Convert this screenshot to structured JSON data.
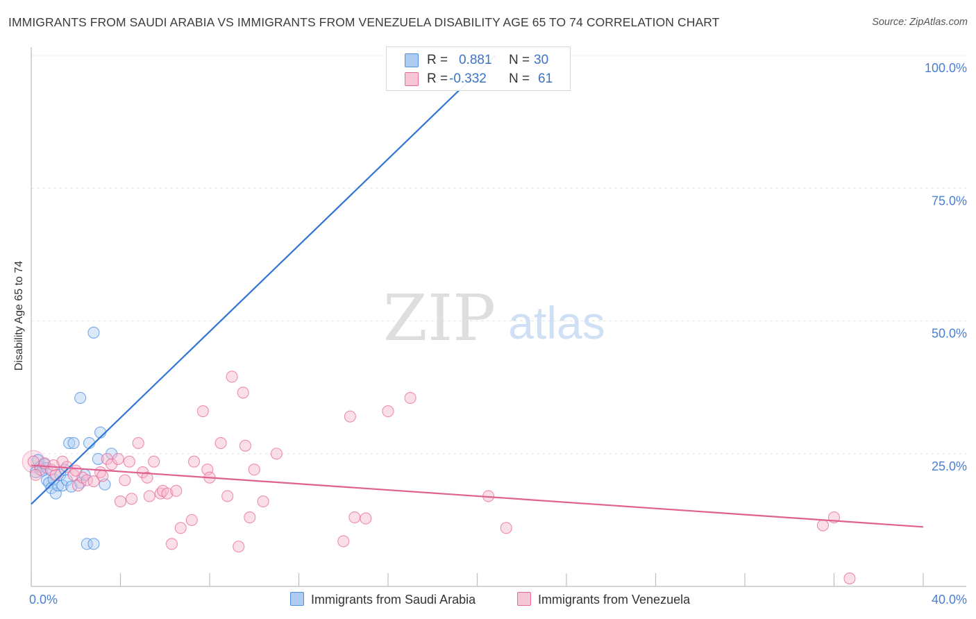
{
  "title": "IMMIGRANTS FROM SAUDI ARABIA VS IMMIGRANTS FROM VENEZUELA DISABILITY AGE 65 TO 74 CORRELATION CHART",
  "source": "Source: ZipAtlas.com",
  "watermark": {
    "zip": "ZIP",
    "atlas": "atlas"
  },
  "stats": [
    {
      "r_label": "R =",
      "r_value": "0.881",
      "n_label": "N =",
      "n_value": "30",
      "color": "#4a90e2"
    },
    {
      "r_label": "R =",
      "r_value": "-0.332",
      "n_label": "N =",
      "n_value": "61",
      "color": "#e86a9a"
    }
  ],
  "chart_data": {
    "type": "scatter",
    "title": "IMMIGRANTS FROM SAUDI ARABIA VS IMMIGRANTS FROM VENEZUELA DISABILITY AGE 65 TO 74 CORRELATION CHART",
    "xlabel": "",
    "ylabel": "Disability Age 65 to 74",
    "xlim": [
      0,
      40
    ],
    "ylim": [
      0,
      100
    ],
    "x_tick_labels": [
      "0.0%",
      "40.0%"
    ],
    "y_ticks": [
      25,
      50,
      75,
      100
    ],
    "y_tick_labels": [
      "25.0%",
      "50.0%",
      "75.0%",
      "100.0%"
    ],
    "grid": true,
    "series": [
      {
        "name": "Immigrants from Saudi Arabia",
        "color": "#4a90e2",
        "fill": "#aecbf2",
        "trend": {
          "x": [
            0,
            20.8
          ],
          "y": [
            15.5,
            100
          ]
        },
        "points": [
          {
            "x": 0.2,
            "y": 21.5
          },
          {
            "x": 0.3,
            "y": 23.8
          },
          {
            "x": 0.4,
            "y": 22.5
          },
          {
            "x": 0.5,
            "y": 21.8
          },
          {
            "x": 0.6,
            "y": 23.0
          },
          {
            "x": 0.7,
            "y": 22.3
          },
          {
            "x": 0.7,
            "y": 20.0
          },
          {
            "x": 0.8,
            "y": 19.5
          },
          {
            "x": 0.9,
            "y": 18.5
          },
          {
            "x": 1.0,
            "y": 20.2
          },
          {
            "x": 1.1,
            "y": 17.5
          },
          {
            "x": 1.2,
            "y": 19.0
          },
          {
            "x": 1.3,
            "y": 21.0
          },
          {
            "x": 1.4,
            "y": 19.0
          },
          {
            "x": 1.5,
            "y": 22.0
          },
          {
            "x": 1.6,
            "y": 20.0
          },
          {
            "x": 1.7,
            "y": 27.0
          },
          {
            "x": 1.8,
            "y": 18.8
          },
          {
            "x": 1.9,
            "y": 27.0
          },
          {
            "x": 2.2,
            "y": 19.5
          },
          {
            "x": 2.2,
            "y": 35.5
          },
          {
            "x": 2.4,
            "y": 21.0
          },
          {
            "x": 2.5,
            "y": 8.0
          },
          {
            "x": 2.6,
            "y": 27.0
          },
          {
            "x": 2.8,
            "y": 8.0
          },
          {
            "x": 2.8,
            "y": 47.8
          },
          {
            "x": 3.0,
            "y": 24.0
          },
          {
            "x": 3.1,
            "y": 29.0
          },
          {
            "x": 3.3,
            "y": 19.2
          },
          {
            "x": 3.6,
            "y": 25.0
          }
        ]
      },
      {
        "name": "Immigrants from Venezuela",
        "color": "#e86a9a",
        "fill": "#f7b9cd",
        "trend": {
          "x": [
            0,
            40
          ],
          "y": [
            22.8,
            11.2
          ]
        },
        "points": [
          {
            "x": 0.1,
            "y": 23.5
          },
          {
            "x": 0.4,
            "y": 22.0
          },
          {
            "x": 0.6,
            "y": 23.2
          },
          {
            "x": 0.9,
            "y": 22.0
          },
          {
            "x": 1.1,
            "y": 21.0
          },
          {
            "x": 1.4,
            "y": 23.5
          },
          {
            "x": 1.6,
            "y": 22.5
          },
          {
            "x": 1.9,
            "y": 21.0
          },
          {
            "x": 2.1,
            "y": 19.0
          },
          {
            "x": 2.3,
            "y": 20.5
          },
          {
            "x": 2.5,
            "y": 20.0
          },
          {
            "x": 2.8,
            "y": 19.8
          },
          {
            "x": 3.1,
            "y": 21.5
          },
          {
            "x": 3.4,
            "y": 24.0
          },
          {
            "x": 3.6,
            "y": 23.0
          },
          {
            "x": 3.9,
            "y": 24.0
          },
          {
            "x": 4.0,
            "y": 16.0
          },
          {
            "x": 4.2,
            "y": 20.0
          },
          {
            "x": 4.4,
            "y": 23.5
          },
          {
            "x": 4.5,
            "y": 16.5
          },
          {
            "x": 4.8,
            "y": 27.0
          },
          {
            "x": 5.0,
            "y": 21.5
          },
          {
            "x": 5.2,
            "y": 20.5
          },
          {
            "x": 5.3,
            "y": 17.0
          },
          {
            "x": 5.5,
            "y": 23.5
          },
          {
            "x": 5.8,
            "y": 17.5
          },
          {
            "x": 5.9,
            "y": 18.0
          },
          {
            "x": 6.1,
            "y": 17.5
          },
          {
            "x": 6.3,
            "y": 8.0
          },
          {
            "x": 6.5,
            "y": 18.0
          },
          {
            "x": 6.7,
            "y": 11.0
          },
          {
            "x": 7.2,
            "y": 12.5
          },
          {
            "x": 7.3,
            "y": 23.5
          },
          {
            "x": 7.7,
            "y": 33.0
          },
          {
            "x": 7.9,
            "y": 22.0
          },
          {
            "x": 8.0,
            "y": 20.5
          },
          {
            "x": 8.5,
            "y": 27.0
          },
          {
            "x": 8.8,
            "y": 17.0
          },
          {
            "x": 9.0,
            "y": 39.5
          },
          {
            "x": 9.3,
            "y": 7.5
          },
          {
            "x": 9.5,
            "y": 36.5
          },
          {
            "x": 9.6,
            "y": 26.5
          },
          {
            "x": 9.8,
            "y": 13.0
          },
          {
            "x": 10.0,
            "y": 22.0
          },
          {
            "x": 10.4,
            "y": 16.0
          },
          {
            "x": 11.0,
            "y": 25.0
          },
          {
            "x": 14.0,
            "y": 8.5
          },
          {
            "x": 14.3,
            "y": 32.0
          },
          {
            "x": 14.5,
            "y": 13.0
          },
          {
            "x": 15.0,
            "y": 12.8
          },
          {
            "x": 16.0,
            "y": 33.0
          },
          {
            "x": 17.0,
            "y": 35.5
          },
          {
            "x": 20.5,
            "y": 17.0
          },
          {
            "x": 21.3,
            "y": 11.0
          },
          {
            "x": 35.5,
            "y": 11.5
          },
          {
            "x": 36.0,
            "y": 13.0
          },
          {
            "x": 36.7,
            "y": 1.5
          },
          {
            "x": 0.2,
            "y": 21.0
          },
          {
            "x": 1.0,
            "y": 22.8
          },
          {
            "x": 2.0,
            "y": 21.8
          },
          {
            "x": 3.2,
            "y": 20.8
          }
        ]
      }
    ]
  }
}
